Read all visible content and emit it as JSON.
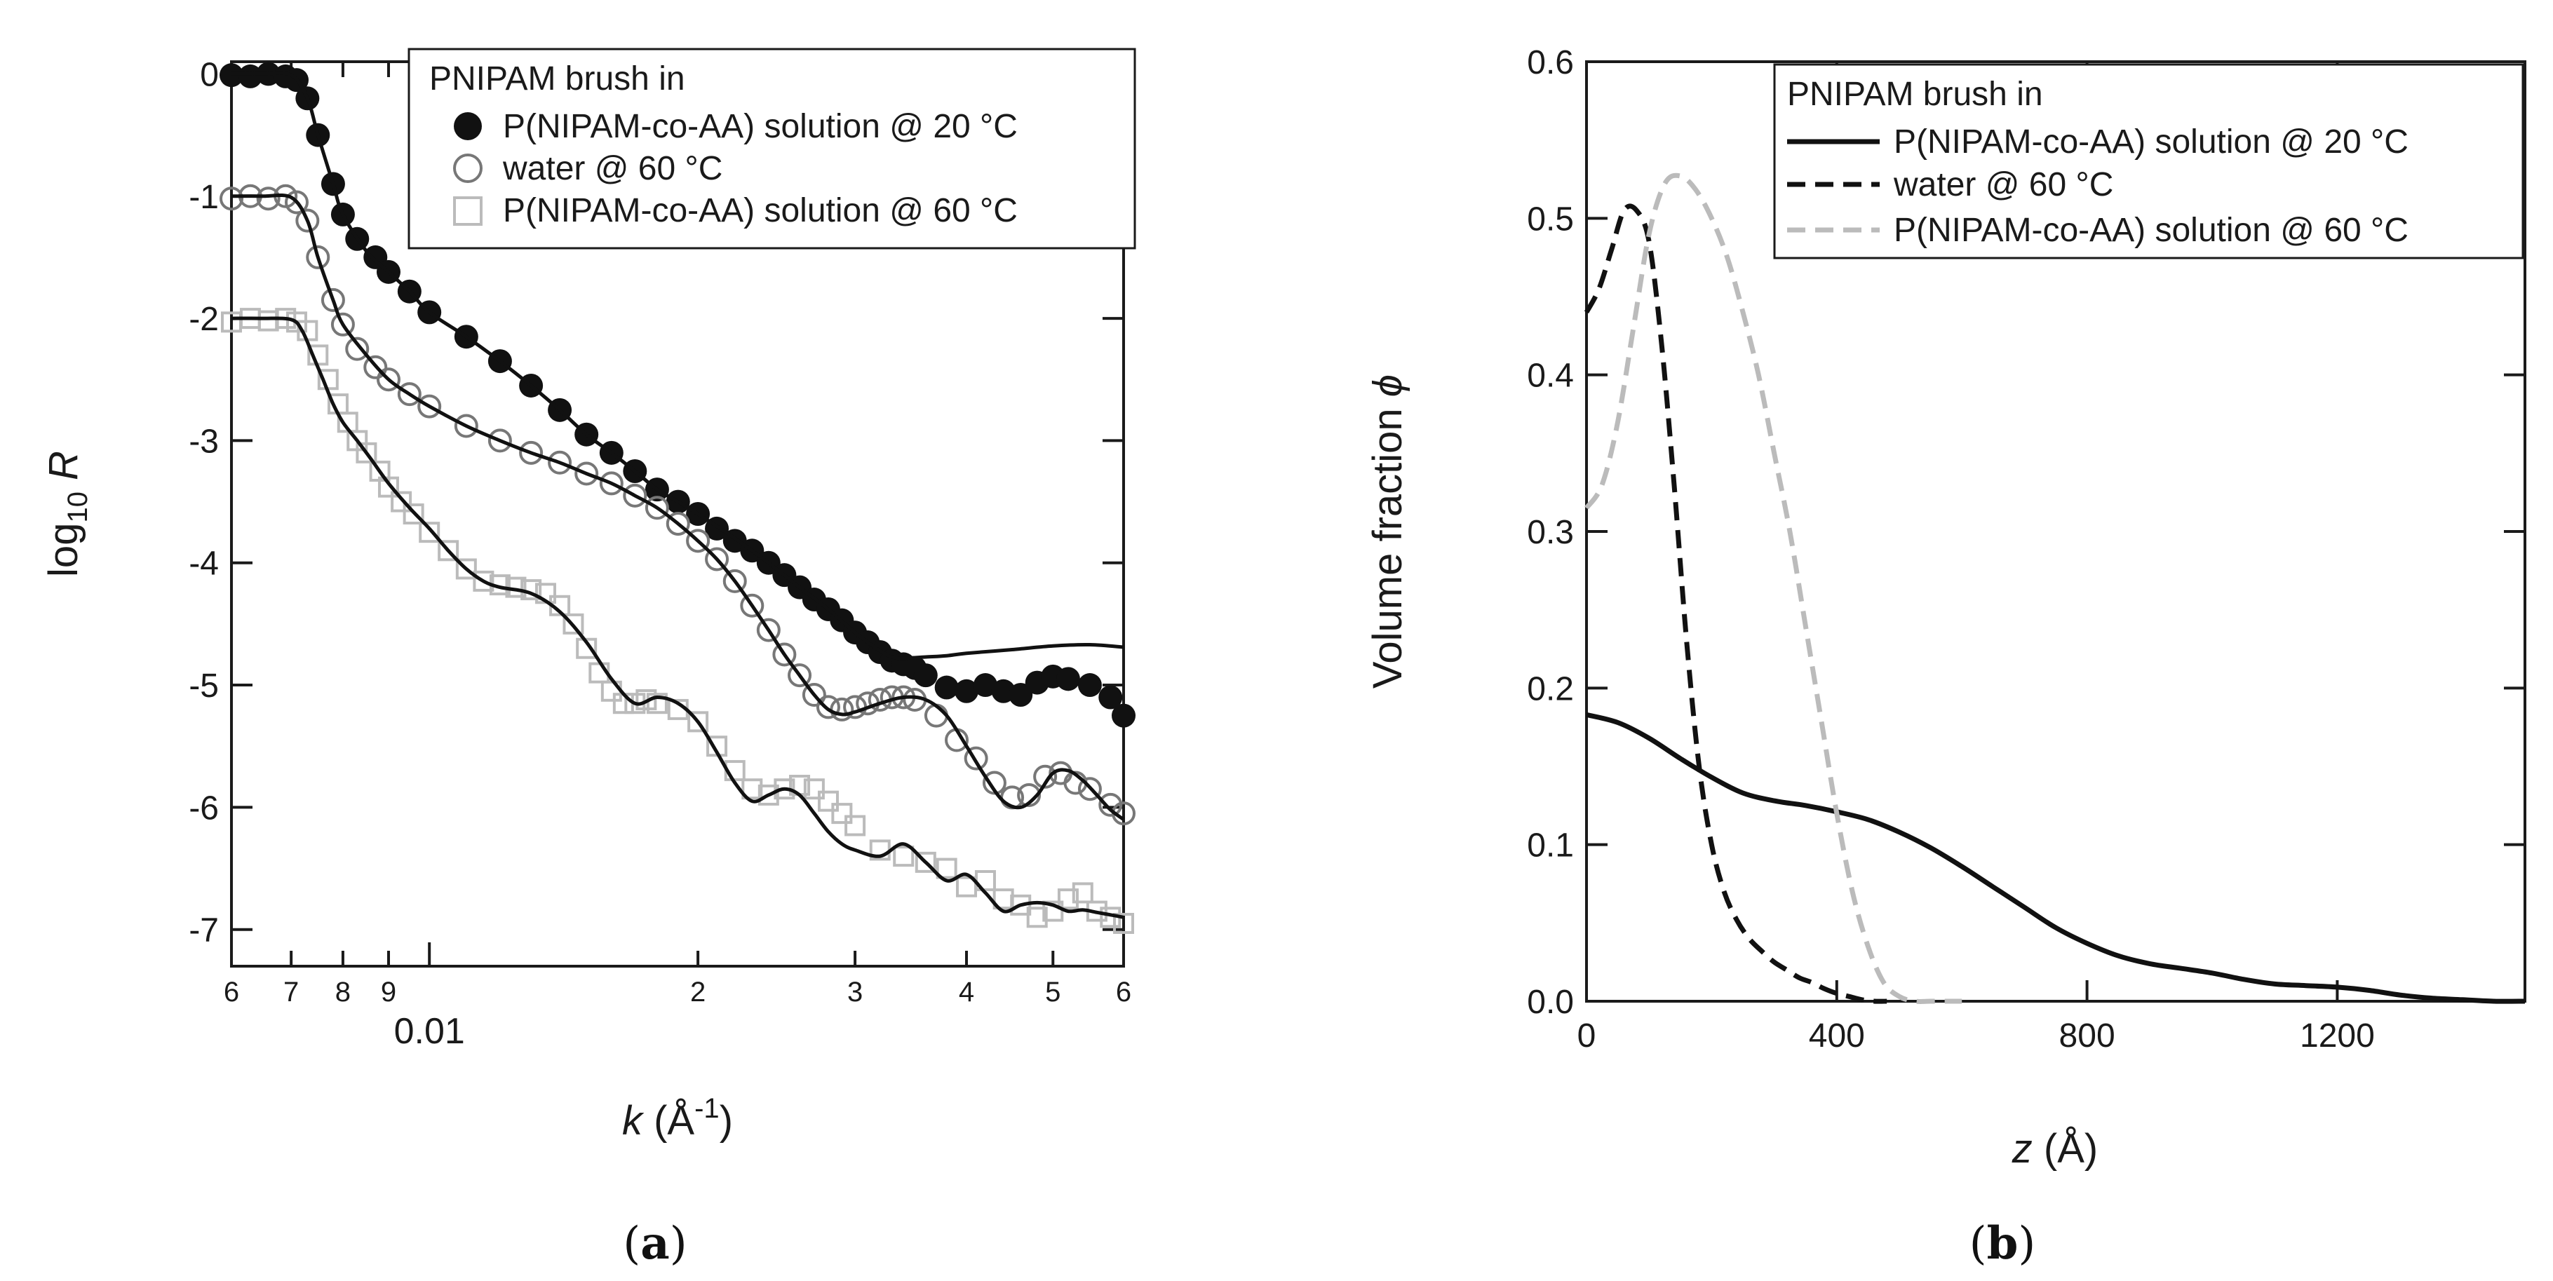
{
  "chart_data": [
    {
      "type": "scatter",
      "panel_label": "a",
      "xlabel": "k",
      "xlabel_unit": "Å",
      "xlabel_unit_exp": "-1",
      "ylabel": "log",
      "ylabel_sub": "10",
      "ylabel_var": "R",
      "x_scale": "log",
      "xlim": [
        0.006,
        0.06
      ],
      "ylim": [
        -7.3,
        0.1
      ],
      "y_ticks": [
        0,
        -1,
        -2,
        -3,
        -4,
        -5,
        -6,
        -7
      ],
      "y_tick_labels": [
        "0",
        "-1",
        "-2",
        "-3",
        "-4",
        "-5",
        "-6",
        "-7"
      ],
      "x_ticks": [
        {
          "value": 0.006,
          "label": "6"
        },
        {
          "value": 0.007,
          "label": "7"
        },
        {
          "value": 0.008,
          "label": "8"
        },
        {
          "value": 0.009,
          "label": "9"
        },
        {
          "value": 0.01,
          "label": "0.01",
          "major": true
        },
        {
          "value": 0.02,
          "label": "2"
        },
        {
          "value": 0.03,
          "label": "3"
        },
        {
          "value": 0.04,
          "label": "4"
        },
        {
          "value": 0.05,
          "label": "5"
        },
        {
          "value": 0.06,
          "label": "6"
        }
      ],
      "legend_position": "top-right",
      "legend_title": "PNIPAM brush in",
      "series": [
        {
          "name": "P(NIPAM-co-AA) solution @ 20 °C",
          "marker": "filled-circle",
          "color": "#111111",
          "data_k": [
            0.006,
            0.0063,
            0.0066,
            0.0069,
            0.0071,
            0.0073,
            0.0075,
            0.0078,
            0.008,
            0.0083,
            0.0087,
            0.009,
            0.0095,
            0.01,
            0.011,
            0.012,
            0.013,
            0.014,
            0.015,
            0.016,
            0.017,
            0.018,
            0.019,
            0.02,
            0.021,
            0.022,
            0.023,
            0.024,
            0.025,
            0.026,
            0.027,
            0.028,
            0.029,
            0.03,
            0.031,
            0.032,
            0.033,
            0.034,
            0.035,
            0.036,
            0.038,
            0.04,
            0.042,
            0.044,
            0.046,
            0.048,
            0.05,
            0.052,
            0.055,
            0.058,
            0.06
          ],
          "data_logR": [
            -0.01,
            -0.02,
            0.0,
            -0.02,
            -0.05,
            -0.2,
            -0.5,
            -0.9,
            -1.15,
            -1.35,
            -1.5,
            -1.62,
            -1.78,
            -1.95,
            -2.15,
            -2.35,
            -2.55,
            -2.75,
            -2.95,
            -3.1,
            -3.25,
            -3.4,
            -3.5,
            -3.6,
            -3.72,
            -3.82,
            -3.9,
            -4.0,
            -4.1,
            -4.2,
            -4.3,
            -4.38,
            -4.47,
            -4.57,
            -4.65,
            -4.73,
            -4.8,
            -4.83,
            -4.86,
            -4.92,
            -5.02,
            -5.05,
            -5.0,
            -5.05,
            -5.08,
            -4.98,
            -4.93,
            -4.95,
            -5.0,
            -5.1,
            -5.25
          ],
          "fit_k": [
            0.006,
            0.0065,
            0.007,
            0.0073,
            0.0075,
            0.0078,
            0.008,
            0.0085,
            0.009,
            0.0095,
            0.01,
            0.011,
            0.012,
            0.013,
            0.014,
            0.015,
            0.016,
            0.017,
            0.018,
            0.019,
            0.02,
            0.022,
            0.024,
            0.026,
            0.028,
            0.03,
            0.031,
            0.032,
            0.033,
            0.034,
            0.036,
            0.038,
            0.04,
            0.045,
            0.05,
            0.055,
            0.06
          ],
          "fit_logR": [
            0.0,
            0.0,
            -0.01,
            -0.2,
            -0.5,
            -0.9,
            -1.15,
            -1.45,
            -1.62,
            -1.78,
            -1.95,
            -2.15,
            -2.35,
            -2.55,
            -2.75,
            -2.95,
            -3.1,
            -3.25,
            -3.4,
            -3.5,
            -3.6,
            -3.8,
            -4.0,
            -4.2,
            -4.38,
            -4.57,
            -4.65,
            -4.72,
            -4.77,
            -4.78,
            -4.77,
            -4.76,
            -4.74,
            -4.71,
            -4.68,
            -4.67,
            -4.69
          ]
        },
        {
          "name": "water @ 60 °C",
          "marker": "open-circle",
          "color": "#777777",
          "data_k": [
            0.006,
            0.0063,
            0.0066,
            0.0069,
            0.0071,
            0.0073,
            0.0075,
            0.0078,
            0.008,
            0.0083,
            0.0087,
            0.009,
            0.0095,
            0.01,
            0.011,
            0.012,
            0.013,
            0.014,
            0.015,
            0.016,
            0.017,
            0.018,
            0.019,
            0.02,
            0.021,
            0.022,
            0.023,
            0.024,
            0.025,
            0.026,
            0.027,
            0.028,
            0.029,
            0.03,
            0.031,
            0.032,
            0.033,
            0.034,
            0.035,
            0.037,
            0.039,
            0.041,
            0.043,
            0.045,
            0.047,
            0.049,
            0.051,
            0.053,
            0.055,
            0.058,
            0.06
          ],
          "data_logR": [
            -1.02,
            -1.0,
            -1.02,
            -1.0,
            -1.05,
            -1.2,
            -1.5,
            -1.85,
            -2.05,
            -2.25,
            -2.4,
            -2.5,
            -2.62,
            -2.72,
            -2.88,
            -3.0,
            -3.1,
            -3.18,
            -3.27,
            -3.35,
            -3.45,
            -3.55,
            -3.68,
            -3.82,
            -3.97,
            -4.15,
            -4.35,
            -4.55,
            -4.75,
            -4.92,
            -5.08,
            -5.18,
            -5.2,
            -5.18,
            -5.15,
            -5.12,
            -5.1,
            -5.1,
            -5.12,
            -5.25,
            -5.45,
            -5.6,
            -5.8,
            -5.92,
            -5.9,
            -5.75,
            -5.72,
            -5.8,
            -5.85,
            -5.98,
            -6.05
          ],
          "fit_k": [
            0.006,
            0.0065,
            0.007,
            0.0073,
            0.0075,
            0.0078,
            0.008,
            0.0085,
            0.009,
            0.0095,
            0.01,
            0.011,
            0.012,
            0.013,
            0.014,
            0.015,
            0.016,
            0.017,
            0.018,
            0.019,
            0.02,
            0.021,
            0.022,
            0.023,
            0.024,
            0.025,
            0.026,
            0.027,
            0.028,
            0.029,
            0.03,
            0.032,
            0.034,
            0.036,
            0.038,
            0.04,
            0.042,
            0.044,
            0.046,
            0.048,
            0.05,
            0.052,
            0.054,
            0.056,
            0.058,
            0.06
          ],
          "fit_logR": [
            -1.0,
            -1.0,
            -1.01,
            -1.2,
            -1.5,
            -1.85,
            -2.05,
            -2.3,
            -2.5,
            -2.62,
            -2.72,
            -2.88,
            -3.0,
            -3.1,
            -3.18,
            -3.27,
            -3.35,
            -3.45,
            -3.55,
            -3.68,
            -3.82,
            -3.97,
            -4.15,
            -4.35,
            -4.55,
            -4.75,
            -4.92,
            -5.08,
            -5.2,
            -5.24,
            -5.22,
            -5.15,
            -5.1,
            -5.12,
            -5.25,
            -5.5,
            -5.75,
            -5.95,
            -6.0,
            -5.9,
            -5.72,
            -5.7,
            -5.78,
            -5.9,
            -6.02,
            -6.1
          ]
        },
        {
          "name": "P(NIPAM-co-AA) solution @ 60 °C",
          "marker": "open-square",
          "color": "#bbbbbb",
          "data_k": [
            0.006,
            0.0063,
            0.0066,
            0.0069,
            0.0071,
            0.0073,
            0.0075,
            0.0077,
            0.0079,
            0.0081,
            0.0083,
            0.0085,
            0.0088,
            0.009,
            0.0093,
            0.0096,
            0.01,
            0.0105,
            0.011,
            0.0115,
            0.012,
            0.0125,
            0.013,
            0.0135,
            0.014,
            0.0145,
            0.015,
            0.0155,
            0.016,
            0.0165,
            0.017,
            0.0175,
            0.018,
            0.019,
            0.02,
            0.021,
            0.022,
            0.023,
            0.024,
            0.025,
            0.026,
            0.027,
            0.028,
            0.029,
            0.03,
            0.032,
            0.034,
            0.036,
            0.038,
            0.04,
            0.042,
            0.044,
            0.046,
            0.048,
            0.05,
            0.052,
            0.054,
            0.056,
            0.058,
            0.06
          ],
          "data_logR": [
            -2.03,
            -2.0,
            -2.02,
            -2.0,
            -2.03,
            -2.1,
            -2.3,
            -2.5,
            -2.7,
            -2.85,
            -3.0,
            -3.1,
            -3.25,
            -3.38,
            -3.5,
            -3.6,
            -3.75,
            -3.9,
            -4.05,
            -4.15,
            -4.18,
            -4.2,
            -4.22,
            -4.25,
            -4.35,
            -4.5,
            -4.7,
            -4.9,
            -5.05,
            -5.15,
            -5.15,
            -5.12,
            -5.15,
            -5.2,
            -5.3,
            -5.5,
            -5.7,
            -5.85,
            -5.9,
            -5.85,
            -5.82,
            -5.85,
            -5.95,
            -6.05,
            -6.15,
            -6.35,
            -6.4,
            -6.45,
            -6.5,
            -6.65,
            -6.6,
            -6.75,
            -6.8,
            -6.9,
            -6.85,
            -6.75,
            -6.7,
            -6.85,
            -6.9,
            -6.95
          ],
          "fit_k": [
            0.006,
            0.0065,
            0.007,
            0.0072,
            0.0074,
            0.0076,
            0.0078,
            0.008,
            0.0083,
            0.0086,
            0.009,
            0.0095,
            0.01,
            0.0105,
            0.011,
            0.0115,
            0.012,
            0.013,
            0.014,
            0.015,
            0.016,
            0.017,
            0.018,
            0.019,
            0.02,
            0.021,
            0.022,
            0.023,
            0.024,
            0.025,
            0.026,
            0.027,
            0.028,
            0.029,
            0.03,
            0.032,
            0.034,
            0.036,
            0.038,
            0.04,
            0.042,
            0.044,
            0.046,
            0.048,
            0.05,
            0.052,
            0.054,
            0.056,
            0.058,
            0.06
          ],
          "fit_logR": [
            -2.0,
            -2.0,
            -2.01,
            -2.1,
            -2.3,
            -2.5,
            -2.7,
            -2.85,
            -3.0,
            -3.15,
            -3.35,
            -3.55,
            -3.72,
            -3.9,
            -4.05,
            -4.15,
            -4.2,
            -4.25,
            -4.4,
            -4.65,
            -4.95,
            -5.15,
            -5.1,
            -5.15,
            -5.3,
            -5.55,
            -5.8,
            -5.95,
            -5.9,
            -5.85,
            -5.9,
            -6.05,
            -6.2,
            -6.3,
            -6.35,
            -6.4,
            -6.3,
            -6.45,
            -6.6,
            -6.55,
            -6.7,
            -6.85,
            -6.8,
            -6.78,
            -6.8,
            -6.85,
            -6.84,
            -6.86,
            -6.88,
            -6.9
          ]
        }
      ]
    },
    {
      "type": "line",
      "panel_label": "b",
      "xlabel": "z",
      "xlabel_unit": "Å",
      "ylabel": "Volume fraction",
      "ylabel_var": "ϕ",
      "xlim": [
        0,
        1500
      ],
      "ylim": [
        0,
        0.6
      ],
      "x_ticks": [
        0,
        400,
        800,
        1200
      ],
      "x_tick_labels": [
        "0",
        "400",
        "800",
        "1200"
      ],
      "y_ticks": [
        0.0,
        0.1,
        0.2,
        0.3,
        0.4,
        0.5,
        0.6
      ],
      "y_tick_labels": [
        "0.0",
        "0.1",
        "0.2",
        "0.3",
        "0.4",
        "0.5",
        "0.6"
      ],
      "legend_position": "top-right",
      "legend_title": "PNIPAM brush in",
      "series": [
        {
          "name": "P(NIPAM-co-AA) solution @ 20 °C",
          "style": "solid",
          "color": "#111111",
          "x": [
            0,
            50,
            100,
            150,
            200,
            250,
            300,
            350,
            400,
            450,
            500,
            550,
            600,
            650,
            700,
            750,
            800,
            850,
            900,
            950,
            1000,
            1050,
            1100,
            1150,
            1200,
            1250,
            1300,
            1350,
            1400,
            1450,
            1500
          ],
          "values": [
            0.183,
            0.178,
            0.168,
            0.155,
            0.143,
            0.133,
            0.128,
            0.125,
            0.121,
            0.116,
            0.108,
            0.098,
            0.086,
            0.073,
            0.06,
            0.047,
            0.037,
            0.029,
            0.024,
            0.021,
            0.018,
            0.014,
            0.011,
            0.01,
            0.009,
            0.007,
            0.004,
            0.002,
            0.001,
            0.0,
            0.0
          ]
        },
        {
          "name": "water @ 60 °C",
          "style": "dashed",
          "color": "#111111",
          "x": [
            0,
            20,
            40,
            60,
            80,
            100,
            120,
            140,
            160,
            180,
            200,
            220,
            240,
            260,
            280,
            300,
            320,
            340,
            360,
            380,
            400,
            420,
            440,
            460,
            480
          ],
          "values": [
            0.44,
            0.455,
            0.48,
            0.505,
            0.505,
            0.485,
            0.42,
            0.33,
            0.23,
            0.15,
            0.1,
            0.07,
            0.052,
            0.04,
            0.032,
            0.025,
            0.02,
            0.015,
            0.012,
            0.008,
            0.005,
            0.003,
            0.001,
            0.0,
            0.0
          ]
        },
        {
          "name": "P(NIPAM-co-AA) solution @ 60 °C",
          "style": "dashed",
          "color": "#bbbbbb",
          "x": [
            0,
            25,
            50,
            75,
            100,
            125,
            150,
            175,
            200,
            225,
            250,
            275,
            300,
            325,
            350,
            375,
            400,
            425,
            450,
            475,
            500,
            525,
            550,
            575,
            600
          ],
          "values": [
            0.315,
            0.33,
            0.37,
            0.43,
            0.49,
            0.522,
            0.527,
            0.518,
            0.5,
            0.475,
            0.44,
            0.4,
            0.35,
            0.3,
            0.24,
            0.18,
            0.12,
            0.07,
            0.035,
            0.012,
            0.003,
            0.0,
            0.0,
            0.0,
            0.0
          ]
        }
      ]
    }
  ]
}
